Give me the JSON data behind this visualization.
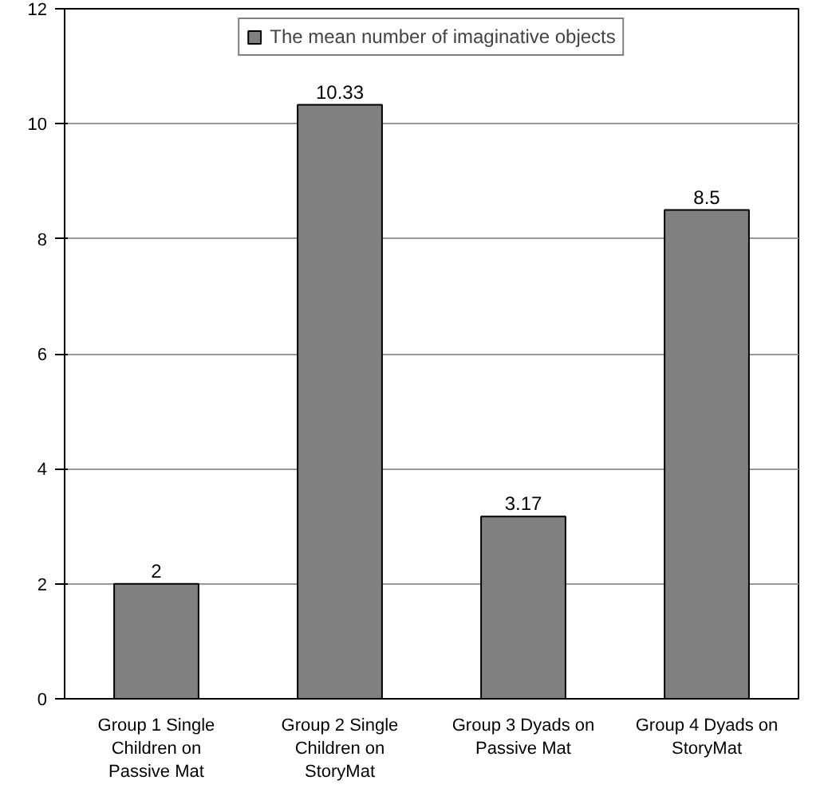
{
  "chart_data": {
    "type": "bar",
    "categories": [
      "Group 1 Single Children on Passive Mat",
      "Group 2 Single Children on StoryMat",
      "Group 3 Dyads on Passive Mat",
      "Group 4 Dyads on StoryMat"
    ],
    "series": [
      {
        "name": "The mean number of imaginative objects",
        "color": "#808080",
        "values": [
          2,
          10.33,
          3.17,
          8.5
        ]
      }
    ],
    "ylim": [
      0,
      12
    ],
    "yticks": [
      0,
      2,
      4,
      6,
      8,
      10,
      12
    ],
    "grid": "y",
    "legend": "top",
    "data_labels": true
  }
}
